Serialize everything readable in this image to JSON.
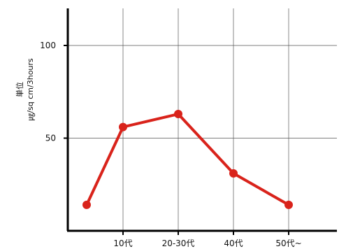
{
  "chart_data": {
    "type": "line",
    "categories": [
      "",
      "10代",
      "20-30代",
      "40代",
      "50代~"
    ],
    "values": [
      14,
      56,
      63,
      31,
      14
    ],
    "ylim": [
      0,
      120
    ],
    "y_ticks": [
      50,
      100
    ],
    "ylabel_unit": "単位",
    "ylabel": "㎍/sq cm/3hours",
    "grid": true,
    "color": "#d9231b",
    "title": "",
    "xlabel": ""
  }
}
